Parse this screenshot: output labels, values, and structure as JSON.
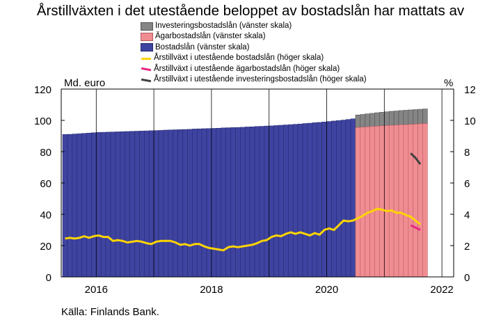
{
  "title": "Årstillväxten i det utestående beloppet av bostadslån har mattats av",
  "source": "Källa: Finlands Bank.",
  "left_axis_unit": "Md. euro",
  "right_axis_unit": "%",
  "legend": [
    {
      "label": "Investeringsbostadslån (vänster skala)",
      "color": "#858585",
      "kind": "box"
    },
    {
      "label": "Ägarbostadslån (vänster skala)",
      "color": "#f08d92",
      "kind": "box"
    },
    {
      "label": "Bostadslån (vänster skala)",
      "color": "#3f44a1",
      "kind": "box"
    },
    {
      "label": "Årstillväxt i utestående bostadslån (höger skala)",
      "color": "#ffd400",
      "kind": "line"
    },
    {
      "label": "Årstillväxt i utestående ägarbostadslån (höger skala)",
      "color": "#e8297f",
      "kind": "line"
    },
    {
      "label": "Årstillväxt i utestående investeringsbostadslån (höger skala)",
      "color": "#404040",
      "kind": "line"
    }
  ],
  "chart_data": {
    "type": "bar",
    "x_start": "2015-12",
    "x_end": "2022-02",
    "x_ticks": [
      "2016",
      "2018",
      "2020",
      "2022"
    ],
    "y_left": {
      "label": "Md. euro",
      "ylim": [
        0,
        120
      ],
      "ticks": [
        0,
        20,
        40,
        60,
        80,
        100,
        120
      ]
    },
    "y_right": {
      "label": "%",
      "ylim": [
        0,
        12
      ],
      "ticks": [
        0,
        2,
        4,
        6,
        8,
        10,
        12
      ]
    },
    "grid": "vertical",
    "stacked_split_from": "2021-01",
    "series": [
      {
        "name": "Bostadslån (vänster skala)",
        "axis": "left",
        "kind": "bar",
        "color": "#3f44a1",
        "start": "2015-12",
        "values": [
          91.0,
          91.1,
          91.3,
          91.5,
          91.7,
          91.9,
          92.1,
          92.3,
          92.4,
          92.5,
          92.6,
          92.7,
          92.8,
          92.9,
          93.0,
          93.1,
          93.2,
          93.3,
          93.4,
          93.5,
          93.6,
          93.8,
          93.9,
          94.0,
          94.1,
          94.2,
          94.3,
          94.5,
          94.6,
          94.7,
          94.8,
          94.9,
          95.0,
          95.2,
          95.3,
          95.4,
          95.5,
          95.6,
          95.8,
          95.9,
          96.1,
          96.2,
          96.4,
          96.5,
          96.7,
          96.9,
          97.1,
          97.3,
          97.5,
          97.7,
          98.0,
          98.2,
          98.5,
          98.7,
          99.0,
          99.3,
          99.6,
          99.9,
          100.2,
          100.6,
          101.0,
          101.3,
          101.7,
          102.0,
          102.4,
          102.7,
          103.0,
          103.3,
          103.6,
          103.9
        ]
      },
      {
        "name": "Ägarbostadslån (vänster skala)",
        "axis": "left",
        "kind": "bar",
        "color": "#f08d92",
        "start": "2021-01",
        "values": [
          95.5,
          95.7,
          95.9,
          96.1,
          96.3,
          96.5,
          96.7,
          96.9,
          97.0,
          97.2,
          97.3,
          97.5,
          97.6,
          97.8,
          98.0
        ]
      },
      {
        "name": "Investeringsbostadslån (vänster skala)",
        "axis": "left",
        "kind": "bar_stacked",
        "color": "#858585",
        "start": "2021-01",
        "values": [
          8.0,
          8.1,
          8.3,
          8.4,
          8.6,
          8.7,
          8.8,
          8.9,
          9.0,
          9.1,
          9.2,
          9.2,
          9.3,
          9.3,
          9.3
        ]
      },
      {
        "name": "Årstillväxt i utestående bostadslån (höger skala)",
        "axis": "right",
        "kind": "line",
        "color": "#ffd400",
        "start": "2015-12",
        "values": [
          2.45,
          2.5,
          2.45,
          2.5,
          2.6,
          2.5,
          2.6,
          2.65,
          2.55,
          2.55,
          2.3,
          2.35,
          2.3,
          2.2,
          2.25,
          2.3,
          2.25,
          2.15,
          2.1,
          2.25,
          2.3,
          2.3,
          2.3,
          2.2,
          2.05,
          2.1,
          2.0,
          2.1,
          2.1,
          1.95,
          1.85,
          1.8,
          1.75,
          1.7,
          1.9,
          1.95,
          1.9,
          1.95,
          2.0,
          2.05,
          2.15,
          2.3,
          2.35,
          2.55,
          2.65,
          2.6,
          2.75,
          2.85,
          2.75,
          2.85,
          2.75,
          2.65,
          2.8,
          2.7,
          3.0,
          3.1,
          3.0,
          3.3,
          3.6,
          3.55,
          3.6,
          3.75,
          3.9,
          4.1,
          4.2,
          4.35,
          4.3,
          4.2,
          4.25,
          4.1,
          4.1,
          3.95,
          3.85,
          3.6,
          3.35
        ]
      },
      {
        "name": "Årstillväxt i utestående ägarbostadslån (höger skala)",
        "axis": "right",
        "kind": "line",
        "color": "#e8297f",
        "start": "2021-12",
        "values": [
          3.3,
          3.15,
          3.0
        ]
      },
      {
        "name": "Årstillväxt i utestående investeringsbostadslån (höger skala)",
        "axis": "right",
        "kind": "line",
        "color": "#404040",
        "start": "2021-12",
        "values": [
          7.9,
          7.6,
          7.2
        ]
      }
    ]
  }
}
